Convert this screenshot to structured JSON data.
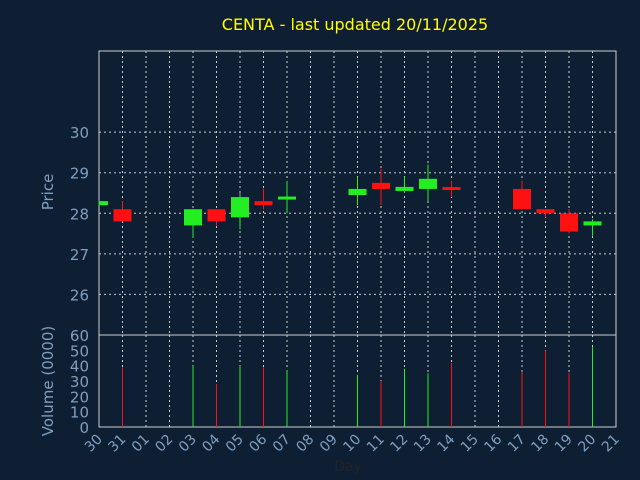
{
  "chart_data": {
    "type": "candlestick",
    "title": "CENTA - last updated 20/11/2025",
    "xlabel": "Day",
    "ylabel": "Price",
    "volume_label": "Volume (0000)",
    "price_ylim": [
      25,
      32
    ],
    "price_ticks": [
      26,
      27,
      28,
      29,
      30
    ],
    "volume_ylim": [
      0,
      60
    ],
    "volume_ticks": [
      0,
      10,
      20,
      30,
      40,
      50,
      60
    ],
    "x_tick_labels": [
      "30",
      "31",
      "01",
      "02",
      "03",
      "04",
      "05",
      "06",
      "07",
      "08",
      "09",
      "10",
      "11",
      "12",
      "13",
      "14",
      "15",
      "16",
      "17",
      "18",
      "19",
      "20",
      "21"
    ],
    "grid": true,
    "colors": {
      "background": "#0f1f33",
      "up": "#22ee22",
      "down": "#ff1111",
      "title": "#ffff00",
      "axis_text": "#7f9fbf",
      "frame": "#cccccc",
      "grid": "#cccccc"
    },
    "candles": [
      {
        "day": "30",
        "open": 28.2,
        "close": 28.3,
        "high": 28.3,
        "low": 28.2,
        "volume": 0
      },
      {
        "day": "31",
        "open": 28.1,
        "close": 27.8,
        "high": 28.3,
        "low": 27.8,
        "volume": 39
      },
      {
        "day": "03",
        "open": 27.7,
        "close": 28.1,
        "high": 28.1,
        "low": 27.4,
        "volume": 40
      },
      {
        "day": "04",
        "open": 28.1,
        "close": 27.8,
        "high": 28.1,
        "low": 27.7,
        "volume": 28
      },
      {
        "day": "05",
        "open": 27.9,
        "close": 28.4,
        "high": 28.5,
        "low": 27.6,
        "volume": 40
      },
      {
        "day": "06",
        "open": 28.3,
        "close": 28.2,
        "high": 28.6,
        "low": 28.1,
        "volume": 39
      },
      {
        "day": "07",
        "open": 28.35,
        "close": 28.4,
        "high": 28.8,
        "low": 28.0,
        "volume": 37
      },
      {
        "day": "10",
        "open": 28.45,
        "close": 28.6,
        "high": 28.9,
        "low": 28.2,
        "volume": 34
      },
      {
        "day": "11",
        "open": 28.75,
        "close": 28.6,
        "high": 29.1,
        "low": 28.2,
        "volume": 30
      },
      {
        "day": "12",
        "open": 28.55,
        "close": 28.65,
        "high": 28.9,
        "low": 28.5,
        "volume": 38
      },
      {
        "day": "13",
        "open": 28.6,
        "close": 28.85,
        "high": 29.2,
        "low": 28.3,
        "volume": 35
      },
      {
        "day": "14",
        "open": 28.62,
        "close": 28.6,
        "high": 28.8,
        "low": 28.4,
        "volume": 42
      },
      {
        "day": "17",
        "open": 28.6,
        "close": 28.1,
        "high": 28.8,
        "low": 28.1,
        "volume": 36
      },
      {
        "day": "18",
        "open": 28.1,
        "close": 28.0,
        "high": 28.1,
        "low": 27.9,
        "volume": 50
      },
      {
        "day": "19",
        "open": 28.0,
        "close": 27.55,
        "high": 28.1,
        "low": 27.5,
        "volume": 35
      },
      {
        "day": "20",
        "open": 27.7,
        "close": 27.8,
        "high": 27.85,
        "low": 27.45,
        "volume": 52
      }
    ]
  }
}
